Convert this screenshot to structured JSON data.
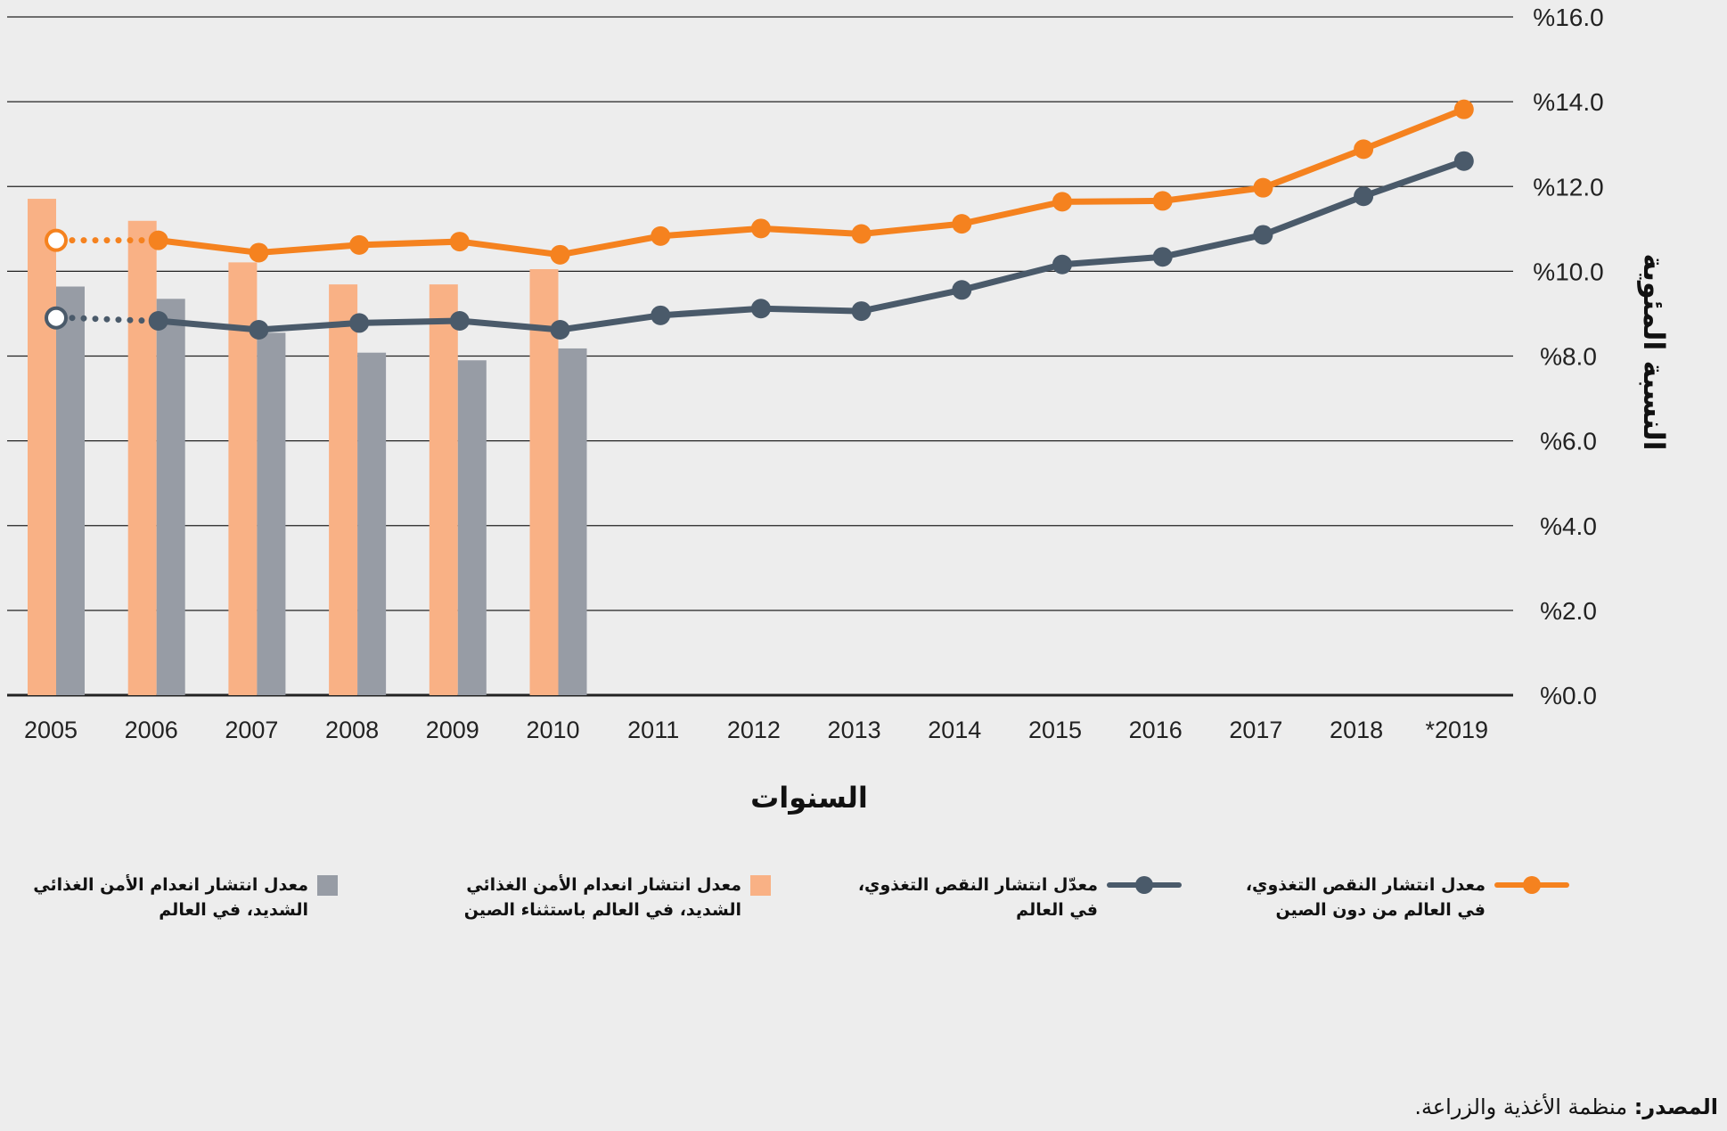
{
  "chart_data": {
    "type": "bar+line",
    "ylabel": "النسبة المئوية",
    "xlabel": "السنوات",
    "ylim": [
      0,
      16
    ],
    "ytick_labels": [
      "%0.0",
      "%2.0",
      "%4.0",
      "%6.0",
      "%8.0",
      "%10.0",
      "%12.0",
      "%14.0",
      "%16.0"
    ],
    "yticks": [
      0,
      2,
      4,
      6,
      8,
      10,
      12,
      14,
      16
    ],
    "grid": true,
    "categories": [
      "2005",
      "2006",
      "2007",
      "2008",
      "2009",
      "2010",
      "2011",
      "2012",
      "2013",
      "2014",
      "2015",
      "2016",
      "2017",
      "2018",
      "*2019"
    ],
    "series": [
      {
        "name": "معدل انتشار النقص التغذوي، في العالم من دون الصين",
        "kind": "line",
        "color": "#f5821f",
        "values": [
          10.73,
          10.73,
          10.44,
          10.62,
          10.7,
          10.39,
          10.83,
          11.01,
          10.88,
          11.12,
          11.64,
          11.66,
          11.97,
          12.88,
          13.82
        ],
        "hollow_first": true
      },
      {
        "name": "معدّل انتشار النقص التغذوي، في العالم",
        "kind": "line",
        "color": "#4a5a6a",
        "values": [
          8.9,
          8.83,
          8.62,
          8.78,
          8.83,
          8.62,
          8.96,
          9.12,
          9.06,
          9.56,
          10.16,
          10.34,
          10.86,
          11.77,
          12.6
        ],
        "hollow_first": true
      },
      {
        "name": "معدل انتشار انعدام الأمن الغذائي الشديد، في العالم باستثناء الصين",
        "kind": "bar",
        "color": "#f9b185",
        "values": [
          11.71,
          11.19,
          10.21,
          9.69,
          9.69,
          10.05,
          null,
          null,
          null,
          null,
          null,
          null,
          null,
          null,
          null
        ]
      },
      {
        "name": "معدل انتشار انعدام الأمن الغذائي الشديد، في العالم",
        "kind": "bar",
        "color": "#979ca5",
        "values": [
          9.64,
          9.35,
          8.55,
          8.08,
          7.9,
          8.18,
          null,
          null,
          null,
          null,
          null,
          null,
          null,
          null,
          null
        ]
      }
    ],
    "legend_position": "bottom"
  },
  "legend": [
    {
      "line1": "معدل انتشار النقص التغذوي،",
      "line2": "في العالم من دون الصين"
    },
    {
      "line1": "معدّل انتشار النقص التغذوي،",
      "line2": "في العالم"
    },
    {
      "line1": "معدل انتشار انعدام الأمن الغذائي",
      "line2": "الشديد، في العالم باستثناء الصين"
    },
    {
      "line1": "معدل انتشار انعدام الأمن الغذائي",
      "line2": "الشديد، في العالم"
    }
  ],
  "source": {
    "label": "المصدر:",
    "text": "منظمة الأغذية والزراعة."
  }
}
